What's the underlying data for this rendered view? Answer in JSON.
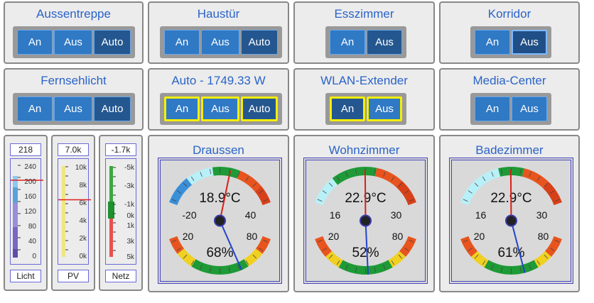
{
  "switches": [
    {
      "title": "Aussentreppe",
      "buttons": [
        "An",
        "Aus",
        "Auto"
      ]
    },
    {
      "title": "Haustür",
      "buttons": [
        "An",
        "Aus",
        "Auto"
      ]
    },
    {
      "title": "Esszimmer",
      "buttons": [
        "An",
        "Aus"
      ]
    },
    {
      "title": "Korridor",
      "buttons": [
        "An",
        "Aus"
      ]
    },
    {
      "title": "Fernsehlicht",
      "buttons": [
        "An",
        "Aus",
        "Auto"
      ]
    },
    {
      "title": "Auto - 1749.33 W",
      "buttons": [
        "An",
        "Aus",
        "Auto"
      ]
    },
    {
      "title": "WLAN-Extender",
      "buttons": [
        "An",
        "Aus"
      ]
    },
    {
      "title": "Media-Center",
      "buttons": [
        "An",
        "Aus"
      ]
    }
  ],
  "meters": [
    {
      "value": "218",
      "label": "Licht",
      "ticks": [
        "240",
        "200",
        "160",
        "120",
        "80",
        "40",
        "0"
      ],
      "level": 218,
      "min": 0,
      "max": 260
    },
    {
      "value": "7.0k",
      "label": "PV",
      "ticks": [
        "10k",
        "8k",
        "6k",
        "4k",
        "2k",
        "0k"
      ],
      "level": 7000,
      "min": 0,
      "max": 11000
    },
    {
      "value": "-1.7k",
      "label": "Netz",
      "ticks": [
        "-5k",
        "-3k",
        "-1k",
        "0k",
        "1k",
        "3k",
        "5k"
      ],
      "level": -1700
    }
  ],
  "gauges": [
    {
      "title": "Draussen",
      "temp": "18.9°C",
      "hum": "68%",
      "tlabels": [
        "-20",
        "40"
      ],
      "hlabels": [
        "20",
        "80"
      ],
      "temp_value": 18.9,
      "hum_value": 68
    },
    {
      "title": "Wohnzimmer",
      "temp": "22.9°C",
      "hum": "52%",
      "tlabels": [
        "16",
        "30"
      ],
      "hlabels": [
        "20",
        "80"
      ],
      "temp_value": 22.9,
      "hum_value": 52
    },
    {
      "title": "Badezimmer",
      "temp": "22.9°C",
      "hum": "61%",
      "tlabels": [
        "16",
        "30"
      ],
      "hlabels": [
        "20",
        "80"
      ],
      "temp_value": 22.9,
      "hum_value": 61
    }
  ],
  "colors": {
    "title": "#2a63c8",
    "button": "#2f79c5",
    "button_active": "#24578f",
    "highlight": "#f5ee00"
  }
}
